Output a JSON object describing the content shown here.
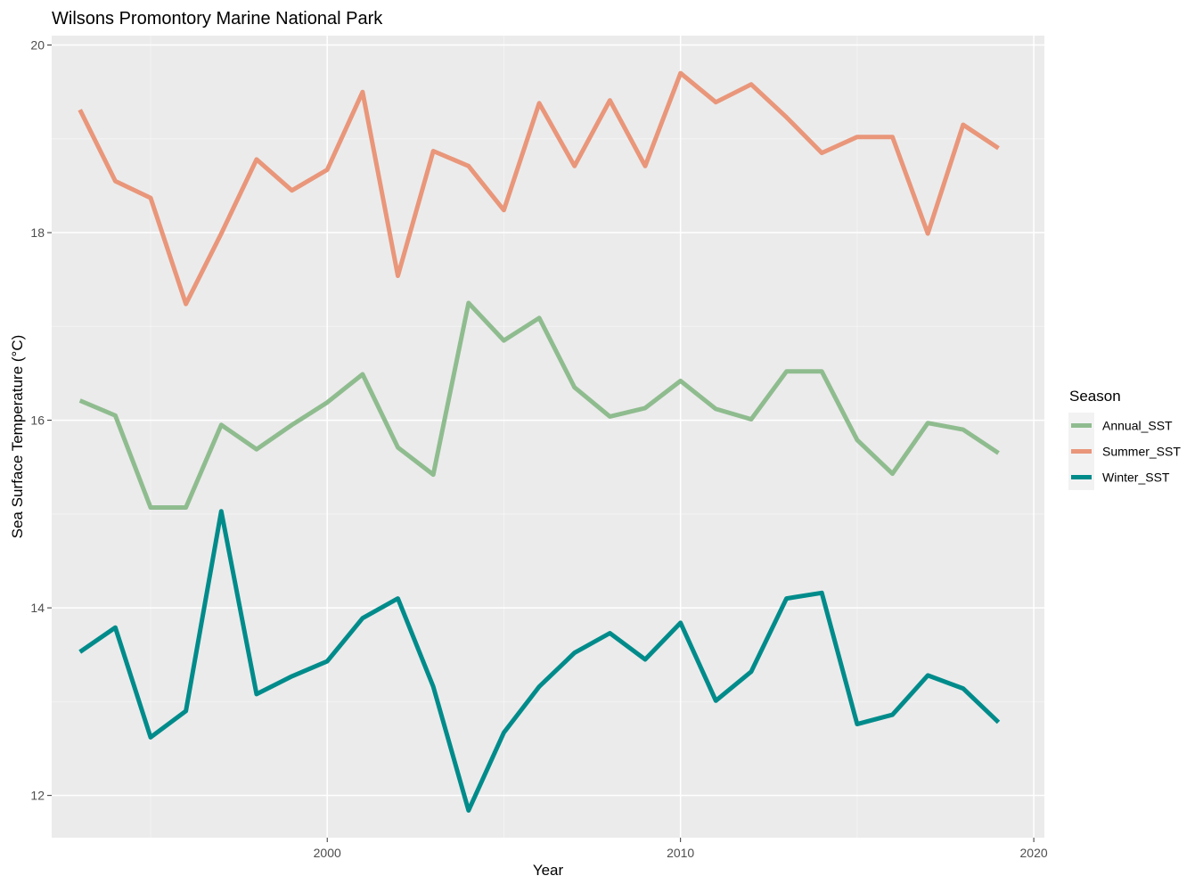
{
  "chart_data": {
    "type": "line",
    "title": "Wilsons Promontory Marine National Park",
    "xlabel": "Year",
    "ylabel": "Sea Surface Temperature (°C)",
    "xlim": [
      1992.2,
      2020.3
    ],
    "ylim": [
      11.55,
      20.1
    ],
    "xticks": [
      2000,
      2010,
      2020
    ],
    "xtick_labels": [
      "2000",
      "2010",
      "2020"
    ],
    "yticks": [
      12,
      14,
      16,
      18,
      20
    ],
    "ytick_labels": [
      "12",
      "14",
      "16",
      "18",
      "20"
    ],
    "grid": true,
    "legend_title": "Season",
    "legend_position": "right",
    "x": [
      1993,
      1994,
      1995,
      1996,
      1997,
      1998,
      1999,
      2000,
      2001,
      2002,
      2003,
      2004,
      2005,
      2006,
      2007,
      2008,
      2009,
      2010,
      2011,
      2012,
      2013,
      2014,
      2015,
      2016,
      2017,
      2018,
      2019
    ],
    "series": [
      {
        "name": "Annual_SST",
        "color": "#8FBC8F",
        "values": [
          16.21,
          16.05,
          15.07,
          15.07,
          15.95,
          15.69,
          15.95,
          16.19,
          16.49,
          15.71,
          15.42,
          17.25,
          16.85,
          17.09,
          16.35,
          16.04,
          16.13,
          16.42,
          16.12,
          16.01,
          16.52,
          16.52,
          15.79,
          15.43,
          15.97,
          15.9,
          15.65
        ]
      },
      {
        "name": "Summer_SST",
        "color": "#E9967A",
        "values": [
          19.31,
          18.55,
          18.37,
          17.24,
          17.99,
          18.78,
          18.45,
          18.67,
          19.5,
          17.54,
          18.87,
          18.71,
          18.24,
          19.38,
          18.71,
          19.41,
          18.71,
          19.7,
          19.39,
          19.58,
          19.23,
          18.85,
          19.02,
          19.02,
          17.99,
          19.15,
          18.9
        ]
      },
      {
        "name": "Winter_SST",
        "color": "#008B8B",
        "values": [
          13.53,
          13.79,
          12.62,
          12.9,
          15.03,
          13.08,
          13.27,
          13.43,
          13.89,
          14.1,
          13.16,
          11.84,
          12.67,
          13.16,
          13.52,
          13.73,
          13.45,
          13.84,
          13.01,
          13.32,
          14.1,
          14.16,
          12.76,
          12.86,
          13.28,
          13.14,
          12.78
        ]
      }
    ]
  }
}
